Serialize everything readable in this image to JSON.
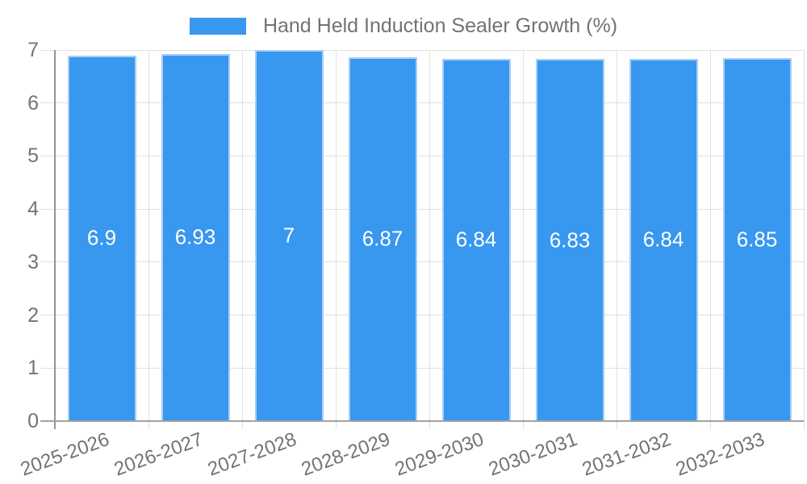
{
  "legend": {
    "label": "Hand Held Induction Sealer Growth (%)"
  },
  "colors": {
    "bar_fill": "#3897ee",
    "bar_border": "#a9cef5",
    "text_gray": "#737373",
    "grid_line": "#e0e0e0",
    "axis_line": "#a2a2a2",
    "value_label": "#ffffff",
    "background": "#ffffff"
  },
  "chart_data": {
    "type": "bar",
    "title": "",
    "series_name": "Hand Held Induction Sealer Growth (%)",
    "categories": [
      "2025-2026",
      "2026-2027",
      "2027-2028",
      "2028-2029",
      "2029-2030",
      "2030-2031",
      "2031-2032",
      "2032-2033"
    ],
    "values": [
      6.9,
      6.93,
      7,
      6.87,
      6.84,
      6.83,
      6.84,
      6.85
    ],
    "xlabel": "",
    "ylabel": "",
    "ylim": [
      0,
      7
    ],
    "yticks": [
      0,
      1,
      2,
      3,
      4,
      5,
      6,
      7
    ],
    "grid": "on",
    "legend_position": "top",
    "value_labels_inside_bars": true
  }
}
